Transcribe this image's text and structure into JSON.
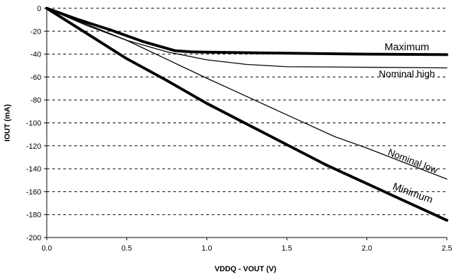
{
  "chart_data": {
    "type": "line",
    "xlabel": "VDDQ - VOUT (V)",
    "ylabel": "IOUT (mA)",
    "xlim": [
      0,
      2.5
    ],
    "ylim": [
      -200,
      0
    ],
    "xticks": [
      "0.0",
      "0.5",
      "1.0",
      "1.5",
      "2.0",
      "2.5"
    ],
    "yticks": [
      "0",
      "-20",
      "-40",
      "-60",
      "-80",
      "-100",
      "-120",
      "-140",
      "-160",
      "-180",
      "-200"
    ],
    "grid": "horizontal dashed",
    "series": [
      {
        "name": "Maximum",
        "weight": "heavy",
        "x": [
          0,
          0.2,
          0.4,
          0.6,
          0.8,
          0.9,
          1.0,
          1.5,
          2.0,
          2.5
        ],
        "y": [
          0,
          -10,
          -19,
          -29,
          -37,
          -38,
          -38.3,
          -39.2,
          -40,
          -40.5
        ]
      },
      {
        "name": "Nominal high",
        "weight": "light",
        "x": [
          0,
          0.25,
          0.5,
          0.75,
          1.0,
          1.25,
          1.5,
          2.0,
          2.5
        ],
        "y": [
          0,
          -15,
          -28,
          -38,
          -45,
          -49,
          -51,
          -51.5,
          -52
        ]
      },
      {
        "name": "Nominal low",
        "weight": "light",
        "x": [
          0,
          0.5,
          1.0,
          1.5,
          1.8,
          2.0,
          2.5
        ],
        "y": [
          0,
          -28,
          -61,
          -93,
          -112,
          -122,
          -149
        ]
      },
      {
        "name": "Minimum",
        "weight": "heavy",
        "x": [
          0,
          0.25,
          0.5,
          0.75,
          1.0,
          1.25,
          1.5,
          1.75,
          2.0,
          2.25,
          2.5
        ],
        "y": [
          0,
          -22,
          -44,
          -63,
          -83,
          -101,
          -119,
          -137,
          -153,
          -169,
          -185
        ]
      }
    ]
  }
}
